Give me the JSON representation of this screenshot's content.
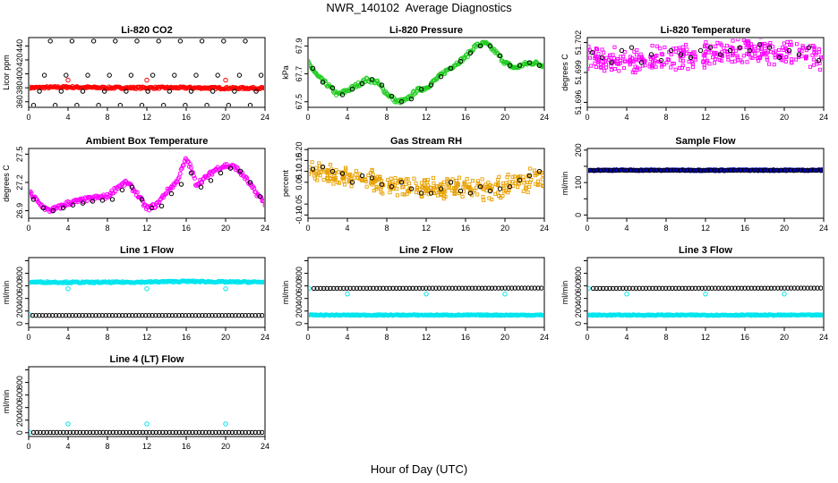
{
  "page": {
    "title": "NWR_140102  Average Diagnostics",
    "xlabel": "Hour of Day (UTC)"
  },
  "colors": {
    "black": "#000000",
    "red": "#ff0000",
    "green": "#22cc22",
    "magenta": "#ff00ff",
    "orange": "#e8a000",
    "blue": "#0000cc",
    "cyan": "#00e5ee"
  },
  "chart_data": [
    {
      "type": "scatter",
      "title": "Li-820 CO2",
      "ylabel": "Licor ppm",
      "xlim": [
        0,
        24
      ],
      "ylim": [
        352,
        452
      ],
      "xticks": [
        0,
        4,
        8,
        12,
        16,
        20,
        24
      ],
      "yticks": [
        360,
        380,
        400,
        420,
        440
      ],
      "grid": false,
      "series": [
        {
          "color": "red",
          "kind": "band",
          "x": [
            0,
            4,
            8,
            12,
            16,
            20,
            24
          ],
          "y": [
            380,
            381,
            380,
            380,
            380,
            379.5,
            379.5
          ],
          "spread": 1.5
        },
        {
          "color": "black",
          "kind": "points",
          "x": [
            1.1,
            2.2,
            3.3,
            4.4,
            5.5,
            6.6,
            7.7,
            8.8,
            9.9,
            11.0,
            12.1,
            13.2,
            14.3,
            15.4,
            16.5,
            17.6,
            18.7,
            19.8,
            20.9,
            22.0,
            23.1
          ],
          "y": [
            375,
            447,
            375,
            447,
            375,
            447,
            375,
            447,
            375,
            447,
            375,
            447,
            375,
            447,
            375,
            447,
            375,
            447,
            375,
            447,
            375
          ]
        },
        {
          "color": "black",
          "kind": "points",
          "x": [
            0.5,
            1.6,
            2.7,
            3.8,
            4.9,
            6.0,
            7.1,
            8.2,
            9.3,
            10.4,
            11.5,
            12.6,
            13.7,
            14.8,
            15.9,
            17.0,
            18.1,
            19.2,
            20.3,
            21.4,
            22.5,
            23.6
          ],
          "y": [
            355,
            398,
            355,
            398,
            355,
            398,
            355,
            398,
            355,
            398,
            355,
            398,
            355,
            398,
            355,
            398,
            355,
            398,
            355,
            398,
            355,
            398
          ]
        },
        {
          "color": "red",
          "kind": "points",
          "x": [
            4,
            12,
            20
          ],
          "y": [
            391,
            391,
            391
          ]
        }
      ]
    },
    {
      "type": "scatter",
      "title": "Li-820 Pressure",
      "ylabel": "kPa",
      "xlim": [
        0,
        24
      ],
      "ylim": [
        67.46,
        67.96
      ],
      "xticks": [
        0,
        4,
        8,
        12,
        16,
        20,
        24
      ],
      "yticks": [
        67.5,
        67.7,
        67.9
      ],
      "grid": false,
      "series": [
        {
          "color": "green",
          "kind": "band",
          "x": [
            0,
            1,
            2,
            3,
            4,
            5,
            6,
            7,
            8,
            9,
            10,
            11,
            12,
            13,
            14,
            15,
            16,
            17,
            18,
            19,
            20,
            21,
            22,
            23,
            24
          ],
          "y": [
            67.78,
            67.68,
            67.62,
            67.55,
            67.58,
            67.62,
            67.66,
            67.64,
            67.56,
            67.5,
            67.51,
            67.58,
            67.6,
            67.66,
            67.72,
            67.77,
            67.82,
            67.9,
            67.92,
            67.86,
            67.78,
            67.74,
            67.77,
            67.78,
            67.76
          ],
          "spread": 0.015
        },
        {
          "color": "black",
          "kind": "points",
          "x": [
            0.5,
            1.5,
            2.5,
            3.5,
            4.5,
            5.5,
            6.5,
            7.5,
            8.5,
            9.5,
            10.5,
            11.5,
            12.5,
            13.5,
            14.5,
            15.5,
            16.5,
            17.5,
            18.5,
            19.5,
            20.5,
            21.5,
            22.5,
            23.5
          ],
          "y": [
            67.74,
            67.64,
            67.6,
            67.55,
            67.59,
            67.63,
            67.66,
            67.62,
            67.54,
            67.5,
            67.52,
            67.59,
            67.62,
            67.68,
            67.74,
            67.79,
            67.85,
            67.9,
            67.9,
            67.83,
            67.76,
            67.76,
            67.78,
            67.76
          ]
        }
      ]
    },
    {
      "type": "scatter",
      "title": "Li-820 Temperature",
      "ylabel": "degrees C",
      "xlim": [
        0,
        24
      ],
      "ylim": [
        51.6955,
        51.7025
      ],
      "xticks": [
        0,
        4,
        8,
        12,
        16,
        20,
        24
      ],
      "yticks": [
        51.696,
        51.699,
        51.702
      ],
      "grid": false,
      "series": [
        {
          "color": "magenta",
          "kind": "cloud",
          "x": [
            0,
            4,
            8,
            12,
            16,
            20,
            24
          ],
          "y": [
            51.7005,
            51.7,
            51.7005,
            51.7008,
            51.7012,
            51.701,
            51.7002
          ],
          "spread": 0.0009
        },
        {
          "color": "black",
          "kind": "points",
          "x": [
            0.5,
            1.5,
            2.5,
            3.5,
            4.5,
            5.5,
            6.5,
            7.5,
            8.5,
            9.5,
            10.5,
            11.5,
            12.5,
            13.5,
            14.5,
            15.5,
            16.5,
            17.5,
            18.5,
            19.5,
            20.5,
            21.5,
            22.5,
            23.5
          ],
          "y": [
            51.701,
            51.7005,
            51.7,
            51.7012,
            51.7015,
            51.7,
            51.7008,
            51.7002,
            51.7012,
            51.7008,
            51.7005,
            51.7012,
            51.7015,
            51.7008,
            51.7012,
            51.7015,
            51.7012,
            51.7018,
            51.7015,
            51.7005,
            51.7012,
            51.7008,
            51.7015,
            51.7002
          ]
        }
      ]
    },
    {
      "type": "scatter",
      "title": "Ambient Box Temperature",
      "ylabel": "degrees C",
      "xlim": [
        0,
        24
      ],
      "ylim": [
        26.82,
        27.56
      ],
      "xticks": [
        0,
        4,
        8,
        12,
        16,
        20,
        24
      ],
      "yticks": [
        26.9,
        27.2,
        27.5
      ],
      "grid": false,
      "series": [
        {
          "color": "magenta",
          "kind": "band",
          "x": [
            0,
            0.5,
            1,
            2,
            3,
            4,
            5,
            6,
            7,
            8,
            9,
            10,
            11,
            12,
            13,
            14,
            15,
            16,
            16.5,
            17,
            18,
            19,
            20,
            21,
            22,
            23,
            24
          ],
          "y": [
            27.1,
            27.05,
            26.98,
            26.9,
            26.93,
            26.98,
            27.0,
            27.02,
            27.04,
            27.05,
            27.15,
            27.2,
            27.08,
            26.92,
            26.96,
            27.1,
            27.2,
            27.45,
            27.35,
            27.18,
            27.25,
            27.34,
            27.38,
            27.36,
            27.25,
            27.1,
            26.98
          ],
          "spread": 0.025
        },
        {
          "color": "black",
          "kind": "points",
          "x": [
            0.5,
            1.5,
            2.5,
            3.5,
            4.5,
            5.5,
            6.5,
            7.5,
            8.5,
            9.5,
            10.5,
            11.5,
            12.5,
            13.5,
            14.5,
            15.5,
            16.5,
            17.5,
            18.5,
            19.5,
            20.5,
            21.5,
            22.5,
            23.5
          ],
          "y": [
            27.02,
            26.93,
            26.9,
            26.93,
            26.96,
            26.98,
            27.0,
            27.01,
            27.02,
            27.12,
            27.15,
            27.02,
            26.93,
            26.95,
            27.08,
            27.18,
            27.3,
            27.15,
            27.22,
            27.3,
            27.35,
            27.32,
            27.2,
            27.05
          ]
        }
      ]
    },
    {
      "type": "scatter",
      "title": "Gas Stream RH",
      "ylabel": "percent",
      "xlim": [
        0,
        24
      ],
      "ylim": [
        -0.115,
        0.205
      ],
      "xticks": [
        0,
        4,
        8,
        12,
        16,
        20,
        24
      ],
      "yticks": [
        -0.1,
        -0.05,
        0.05,
        0.1,
        0.15,
        0.2
      ],
      "ytick_labels": [
        "-0.10",
        "-0.05",
        "0.05",
        "0.10",
        "0.15",
        "0.20"
      ],
      "grid": false,
      "series": [
        {
          "color": "orange",
          "kind": "cloud",
          "x": [
            0,
            2,
            4,
            6,
            8,
            10,
            12,
            14,
            16,
            18,
            20,
            22,
            24
          ],
          "y": [
            0.1,
            0.09,
            0.075,
            0.06,
            0.045,
            0.03,
            0.025,
            0.02,
            0.02,
            0.02,
            0.03,
            0.055,
            0.075
          ],
          "spread": 0.035
        },
        {
          "color": "black",
          "kind": "points",
          "x": [
            0.5,
            1.5,
            2.5,
            3.5,
            4.5,
            5.5,
            6.5,
            7.5,
            8.5,
            9.5,
            10.5,
            11.5,
            12.5,
            13.5,
            14.5,
            15.5,
            16.5,
            17.5,
            18.5,
            19.5,
            20.5,
            21.5,
            22.5,
            23.5
          ],
          "y": [
            0.11,
            0.12,
            0.1,
            0.09,
            0.05,
            0.08,
            0.07,
            0.04,
            0.03,
            0.05,
            0.02,
            0.0,
            0.0,
            0.02,
            0.05,
            0.01,
            0.0,
            0.03,
            0.01,
            0.02,
            0.03,
            0.06,
            0.08,
            0.1
          ]
        }
      ]
    },
    {
      "type": "scatter",
      "title": "Sample Flow",
      "ylabel": "ml/min",
      "xlim": [
        0,
        24
      ],
      "ylim": [
        -10,
        205
      ],
      "xticks": [
        0,
        4,
        8,
        12,
        16,
        20,
        24
      ],
      "yticks": [
        0,
        50,
        100,
        150,
        200
      ],
      "ytick_labels": [
        "0",
        "",
        "100",
        "",
        "200"
      ],
      "grid": false,
      "series": [
        {
          "color": "blue",
          "kind": "band",
          "x": [
            0,
            24
          ],
          "y": [
            138,
            138
          ],
          "spread": 2
        },
        {
          "color": "black",
          "kind": "dense",
          "x": [
            0.3,
            23.7
          ],
          "y": [
            138,
            138
          ],
          "n": 70
        }
      ]
    },
    {
      "type": "scatter",
      "title": "Line 1 Flow",
      "ylabel": "ml/min",
      "xlim": [
        0,
        24
      ],
      "ylim": [
        -60,
        1050
      ],
      "xticks": [
        0,
        4,
        8,
        12,
        16,
        20,
        24
      ],
      "yticks": [
        0,
        200,
        400,
        600,
        800,
        1000
      ],
      "ytick_labels": [
        "0",
        "200",
        "400",
        "600",
        "800",
        ""
      ],
      "grid": false,
      "series": [
        {
          "color": "cyan",
          "kind": "band",
          "x": [
            0,
            6,
            12,
            16,
            20,
            24
          ],
          "y": [
            660,
            655,
            660,
            672,
            662,
            660
          ],
          "spread": 12
        },
        {
          "color": "cyan",
          "kind": "points",
          "x": [
            4,
            12,
            20
          ],
          "y": [
            555,
            555,
            555
          ]
        },
        {
          "color": "cyan",
          "kind": "points",
          "x": [
            0.1
          ],
          "y": [
            140
          ]
        },
        {
          "color": "black",
          "kind": "dense",
          "x": [
            0.4,
            23.7
          ],
          "y": [
            130,
            130
          ],
          "n": 70
        }
      ]
    },
    {
      "type": "scatter",
      "title": "Line 2 Flow",
      "ylabel": "ml/min",
      "xlim": [
        0,
        24
      ],
      "ylim": [
        -60,
        1050
      ],
      "xticks": [
        0,
        4,
        8,
        12,
        16,
        20,
        24
      ],
      "yticks": [
        0,
        200,
        400,
        600,
        800,
        1000
      ],
      "ytick_labels": [
        "0",
        "200",
        "400",
        "600",
        "800",
        ""
      ],
      "grid": false,
      "series": [
        {
          "color": "cyan",
          "kind": "band",
          "x": [
            0,
            24
          ],
          "y": [
            135,
            135
          ],
          "spread": 8
        },
        {
          "color": "cyan",
          "kind": "points",
          "x": [
            0.1,
            4,
            12,
            20
          ],
          "y": [
            560,
            470,
            470,
            470
          ]
        },
        {
          "color": "black",
          "kind": "dense",
          "x": [
            0.6,
            23.7
          ],
          "y": [
            560,
            565
          ],
          "n": 70
        }
      ]
    },
    {
      "type": "scatter",
      "title": "Line 3 Flow",
      "ylabel": "ml/min",
      "xlim": [
        0,
        24
      ],
      "ylim": [
        -60,
        1050
      ],
      "xticks": [
        0,
        4,
        8,
        12,
        16,
        20,
        24
      ],
      "yticks": [
        0,
        200,
        400,
        600,
        800,
        1000
      ],
      "ytick_labels": [
        "0",
        "200",
        "400",
        "600",
        "800",
        ""
      ],
      "grid": false,
      "series": [
        {
          "color": "cyan",
          "kind": "band",
          "x": [
            0,
            24
          ],
          "y": [
            135,
            135
          ],
          "spread": 8
        },
        {
          "color": "cyan",
          "kind": "points",
          "x": [
            0.1,
            4,
            12,
            20
          ],
          "y": [
            560,
            470,
            470,
            470
          ]
        },
        {
          "color": "black",
          "kind": "dense",
          "x": [
            0.6,
            23.7
          ],
          "y": [
            560,
            565
          ],
          "n": 70
        }
      ]
    },
    {
      "type": "scatter",
      "title": "Line 4 (LT) Flow",
      "ylabel": "ml/min",
      "xlim": [
        0,
        24
      ],
      "ylim": [
        -60,
        1050
      ],
      "xticks": [
        0,
        4,
        8,
        12,
        16,
        20,
        24
      ],
      "yticks": [
        0,
        200,
        400,
        600,
        800,
        1000
      ],
      "ytick_labels": [
        "0",
        "200",
        "400",
        "600",
        "800",
        ""
      ],
      "grid": false,
      "series": [
        {
          "color": "cyan",
          "kind": "points",
          "x": [
            0.1,
            4,
            12,
            20
          ],
          "y": [
            5,
            140,
            140,
            140
          ]
        },
        {
          "color": "black",
          "kind": "dense",
          "x": [
            0.5,
            23.7
          ],
          "y": [
            5,
            5
          ],
          "n": 70
        }
      ]
    }
  ]
}
